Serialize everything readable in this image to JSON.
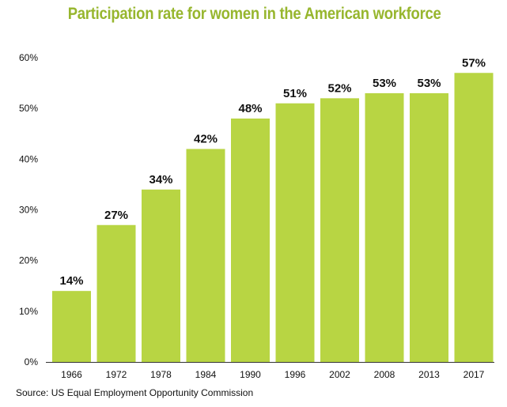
{
  "colors": {
    "title": "#97B62E",
    "bar": "#B8D543",
    "axis": "#333333",
    "text": "#111111"
  },
  "chart_data": {
    "type": "bar",
    "title": "Participation rate for women in the American workforce",
    "xlabel": "",
    "ylabel": "",
    "source": "Source: US Equal Employment Opportunity Commission",
    "categories": [
      "1966",
      "1972",
      "1978",
      "1984",
      "1990",
      "1996",
      "2002",
      "2008",
      "2013",
      "2017"
    ],
    "values": [
      14,
      27,
      34,
      42,
      48,
      51,
      52,
      53,
      53,
      57
    ],
    "data_labels": [
      "14%",
      "27%",
      "34%",
      "42%",
      "48%",
      "51%",
      "52%",
      "53%",
      "53%",
      "57%"
    ],
    "ylim": [
      0,
      60
    ],
    "yticks": [
      0,
      10,
      20,
      30,
      40,
      50,
      60
    ],
    "ytick_labels": [
      "0%",
      "10%",
      "20%",
      "30%",
      "40%",
      "50%",
      "60%"
    ],
    "grid": false,
    "legend": "none"
  }
}
